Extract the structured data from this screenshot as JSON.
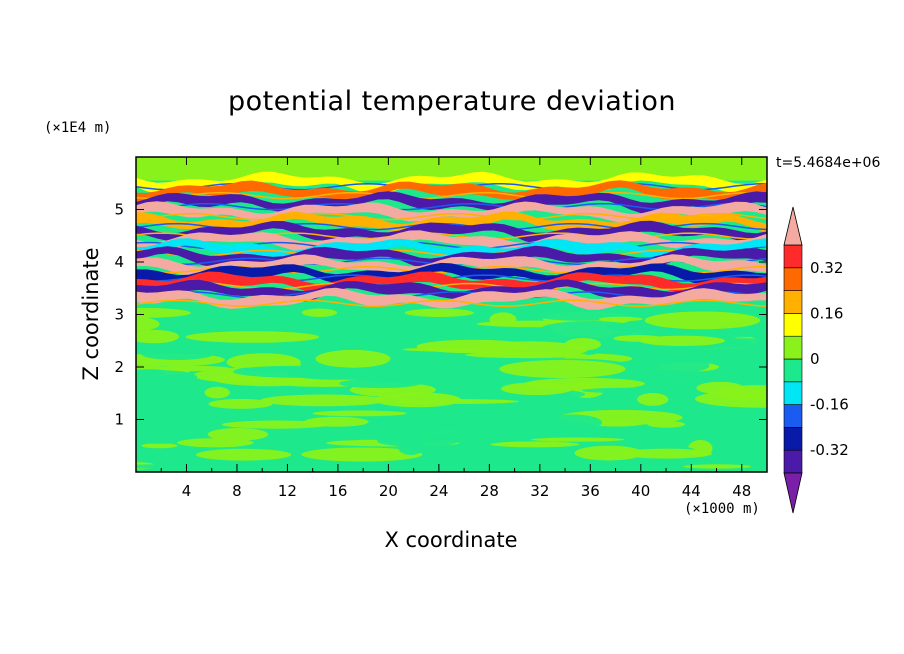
{
  "chart_data": {
    "type": "heatmap",
    "title": "potential temperature deviation",
    "xlabel": "X coordinate",
    "ylabel": "Z coordinate",
    "x_unit": "(×1000 m)",
    "y_unit": "(×1E4 m)",
    "time_label": "t=5.4684e+06",
    "xlim": [
      0,
      50
    ],
    "ylim": [
      0,
      6
    ],
    "x_ticks": [
      "4",
      "8",
      "12",
      "16",
      "20",
      "24",
      "28",
      "32",
      "36",
      "40",
      "44",
      "48"
    ],
    "y_ticks": [
      "1",
      "2",
      "3",
      "4",
      "5"
    ],
    "colorbar": {
      "levels": [
        -0.4,
        -0.32,
        -0.24,
        -0.16,
        -0.08,
        0,
        0.08,
        0.16,
        0.24,
        0.32,
        0.4
      ],
      "tick_labels": [
        "0.32",
        "0.16",
        "0",
        "-0.16",
        "-0.32"
      ],
      "colors": [
        "#7a1fa8",
        "#4b1aa8",
        "#0a1aa8",
        "#1a5cf0",
        "#00e6f5",
        "#1ee88c",
        "#88f21a",
        "#ffff00",
        "#ffb000",
        "#ff6a00",
        "#ff2a2a",
        "#f4aaa0"
      ],
      "extend": "both"
    },
    "bands": [
      {
        "z": 5.52,
        "value": 0.1
      },
      {
        "z": 5.35,
        "value": 0.3
      },
      {
        "z": 5.14,
        "value": -0.38
      },
      {
        "z": 4.95,
        "value": 0.42
      },
      {
        "z": 4.76,
        "value": 0.22
      },
      {
        "z": 4.58,
        "value": -0.35
      },
      {
        "z": 4.4,
        "value": 0.42
      },
      {
        "z": 4.25,
        "value": -0.12
      },
      {
        "z": 4.1,
        "value": -0.38
      },
      {
        "z": 3.94,
        "value": 0.42
      },
      {
        "z": 3.78,
        "value": -0.3
      },
      {
        "z": 3.62,
        "value": 0.35
      },
      {
        "z": 3.46,
        "value": -0.38
      },
      {
        "z": 3.3,
        "value": 0.42
      }
    ],
    "lower_region": {
      "z_max": 3.1,
      "value_range": [
        -0.05,
        0.05
      ]
    }
  }
}
